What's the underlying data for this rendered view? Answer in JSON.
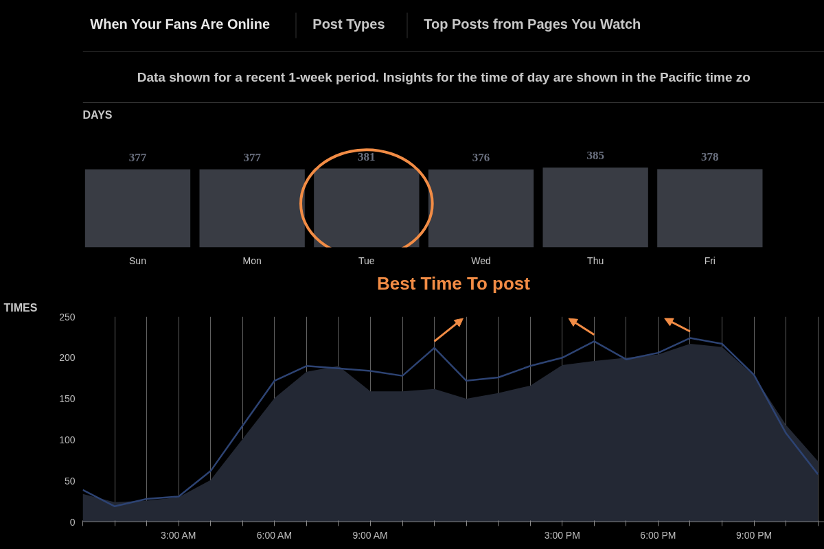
{
  "chart_data": [
    {
      "type": "other",
      "annotations": [
        "When Your Fans Are Online",
        "Post Types",
        "Top Posts from Pages You Watch",
        "Data shown for a recent 1-week period. Insights for the time of day are shown in the Pacific time zo"
      ]
    },
    {
      "type": "bar",
      "title": "DAYS",
      "categories": [
        "Sun",
        "Mon",
        "Tue",
        "Wed",
        "Thu",
        "Fri"
      ],
      "values": [
        377,
        377,
        381,
        376,
        385,
        378
      ],
      "color": "#393c44",
      "data_labels": true
    },
    {
      "type": "area",
      "title": "TIMES",
      "x": [
        0,
        1,
        2,
        3,
        4,
        5,
        6,
        7,
        8,
        9,
        10,
        11,
        12,
        13,
        14,
        15,
        16,
        17,
        18,
        19,
        20,
        21,
        22,
        23
      ],
      "series": [
        {
          "type": "area",
          "color": "#232834",
          "values": [
            34,
            24,
            26,
            30,
            51,
            101,
            151,
            183,
            190,
            159,
            159,
            162,
            150,
            157,
            166,
            191,
            196,
            200,
            204,
            217,
            213,
            178,
            118,
            74
          ]
        },
        {
          "type": "line",
          "color": "#2d4373",
          "values": [
            39,
            19,
            28,
            31,
            62,
            117,
            172,
            190,
            187,
            184,
            178,
            212,
            172,
            176,
            190,
            200,
            220,
            198,
            206,
            224,
            217,
            179,
            108,
            58
          ]
        }
      ],
      "xlim": [
        0,
        23.2
      ],
      "ylim": [
        0,
        250
      ],
      "yticks": [
        0,
        50,
        100,
        150,
        200,
        250
      ],
      "xticks": [
        {
          "value": 0,
          "label": null
        },
        {
          "value": 1,
          "label": null
        },
        {
          "value": 2,
          "label": null
        },
        {
          "value": 3,
          "label": "3:00 AM"
        },
        {
          "value": 4,
          "label": null
        },
        {
          "value": 5,
          "label": null
        },
        {
          "value": 6,
          "label": "6:00 AM"
        },
        {
          "value": 7,
          "label": null
        },
        {
          "value": 8,
          "label": null
        },
        {
          "value": 9,
          "label": "9:00 AM"
        },
        {
          "value": 10,
          "label": null
        },
        {
          "value": 11,
          "label": null
        },
        {
          "value": 12,
          "label": null
        },
        {
          "value": 13,
          "label": null
        },
        {
          "value": 14,
          "label": null
        },
        {
          "value": 15,
          "label": "3:00 PM"
        },
        {
          "value": 16,
          "label": null
        },
        {
          "value": 17,
          "label": null
        },
        {
          "value": 18,
          "label": "6:00 PM"
        },
        {
          "value": 19,
          "label": null
        },
        {
          "value": 20,
          "label": null
        },
        {
          "value": 21,
          "label": "9:00 PM"
        },
        {
          "value": 22,
          "label": null
        },
        {
          "value": 23,
          "label": null
        }
      ],
      "grid": "x",
      "annotations": [
        "Best Time To post"
      ]
    }
  ]
}
